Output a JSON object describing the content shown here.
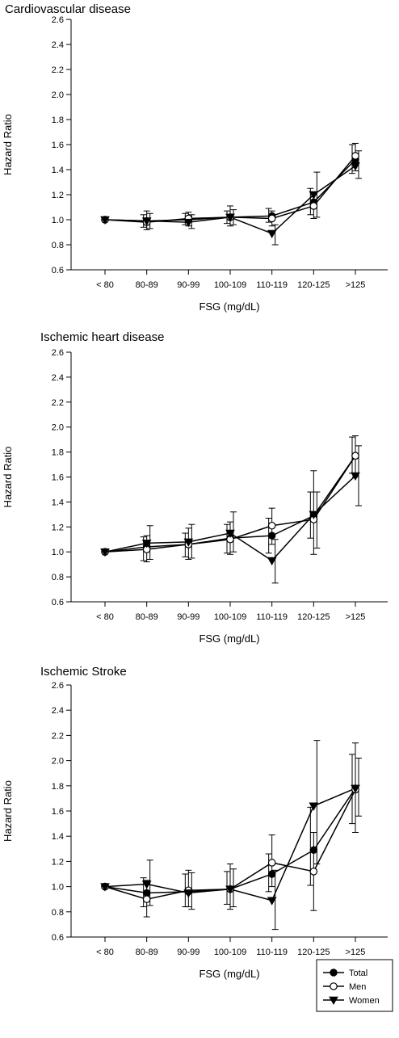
{
  "chart_data": [
    {
      "type": "line",
      "title": "Cardiovascular disease",
      "xlabel": "FSG (mg/dL)",
      "ylabel": "Hazard Ratio",
      "categories": [
        "< 80",
        "80-89",
        "90-99",
        "100-109",
        "110-119",
        "120-125",
        ">125"
      ],
      "ylim": [
        0.6,
        2.6
      ],
      "yticks": [
        "0.6",
        "0.8",
        "1.0",
        "1.2",
        "1.4",
        "1.6",
        "1.8",
        "2.0",
        "2.2",
        "2.4",
        "2.6"
      ],
      "grid": false,
      "series": [
        {
          "name": "Total",
          "marker": "filled-circle",
          "values": [
            1.0,
            0.99,
            1.0,
            1.02,
            1.03,
            1.14,
            1.48
          ],
          "ci_low": [
            1.0,
            0.94,
            0.96,
            0.97,
            0.98,
            1.04,
            1.37
          ],
          "ci_high": [
            1.0,
            1.04,
            1.05,
            1.07,
            1.09,
            1.25,
            1.6
          ]
        },
        {
          "name": "Men",
          "marker": "open-circle",
          "values": [
            1.0,
            0.98,
            1.01,
            1.02,
            1.01,
            1.11,
            1.51
          ],
          "ci_low": [
            1.0,
            0.92,
            0.95,
            0.95,
            0.95,
            1.01,
            1.39
          ],
          "ci_high": [
            1.0,
            1.07,
            1.06,
            1.11,
            1.07,
            1.22,
            1.61
          ]
        },
        {
          "name": "Women",
          "marker": "filled-triangle-down",
          "values": [
            1.0,
            0.99,
            0.98,
            1.02,
            0.89,
            1.2,
            1.43
          ],
          "ci_low": [
            1.0,
            0.93,
            0.93,
            0.96,
            0.8,
            1.02,
            1.33
          ],
          "ci_high": [
            1.0,
            1.05,
            1.04,
            1.08,
            0.96,
            1.38,
            1.55
          ]
        }
      ]
    },
    {
      "type": "line",
      "title": "Ischemic heart disease",
      "xlabel": "FSG (mg/dL)",
      "ylabel": "Hazard Ratio",
      "categories": [
        "< 80",
        "80-89",
        "90-99",
        "100-109",
        "110-119",
        "120-125",
        ">125"
      ],
      "ylim": [
        0.6,
        2.6
      ],
      "yticks": [
        "0.6",
        "0.8",
        "1.0",
        "1.2",
        "1.4",
        "1.6",
        "1.8",
        "2.0",
        "2.2",
        "2.4",
        "2.6"
      ],
      "grid": false,
      "series": [
        {
          "name": "Total",
          "marker": "filled-circle",
          "values": [
            1.0,
            1.04,
            1.06,
            1.11,
            1.13,
            1.29,
            1.77
          ],
          "ci_low": [
            1.0,
            0.93,
            0.96,
            0.99,
            0.99,
            1.11,
            1.63
          ],
          "ci_high": [
            1.0,
            1.12,
            1.15,
            1.22,
            1.27,
            1.48,
            1.92
          ]
        },
        {
          "name": "Men",
          "marker": "open-circle",
          "values": [
            1.0,
            1.02,
            1.06,
            1.1,
            1.21,
            1.26,
            1.77
          ],
          "ci_low": [
            1.0,
            0.92,
            0.94,
            0.98,
            1.06,
            0.98,
            1.6
          ],
          "ci_high": [
            1.0,
            1.13,
            1.19,
            1.24,
            1.35,
            1.65,
            1.93
          ]
        },
        {
          "name": "Women",
          "marker": "filled-triangle-down",
          "values": [
            1.0,
            1.07,
            1.08,
            1.15,
            0.93,
            1.3,
            1.61
          ],
          "ci_low": [
            1.0,
            0.94,
            0.95,
            1.0,
            0.75,
            1.03,
            1.37
          ],
          "ci_high": [
            1.0,
            1.21,
            1.22,
            1.32,
            1.1,
            1.48,
            1.85
          ]
        }
      ]
    },
    {
      "type": "line",
      "title": "Ischemic Stroke",
      "xlabel": "FSG (mg/dL)",
      "ylabel": "Hazard Ratio",
      "categories": [
        "< 80",
        "80-89",
        "90-99",
        "100-109",
        "110-119",
        "120-125",
        ">125"
      ],
      "ylim": [
        0.6,
        2.6
      ],
      "yticks": [
        "0.6",
        "0.8",
        "1.0",
        "1.2",
        "1.4",
        "1.6",
        "1.8",
        "2.0",
        "2.2",
        "2.4",
        "2.6"
      ],
      "grid": false,
      "series": [
        {
          "name": "Total",
          "marker": "filled-circle",
          "values": [
            1.0,
            0.95,
            0.96,
            0.98,
            1.1,
            1.29,
            1.78
          ],
          "ci_low": [
            1.0,
            0.84,
            0.84,
            0.86,
            0.96,
            1.01,
            1.5
          ],
          "ci_high": [
            1.0,
            1.07,
            1.1,
            1.12,
            1.26,
            1.63,
            2.05
          ]
        },
        {
          "name": "Men",
          "marker": "open-circle",
          "values": [
            1.0,
            0.9,
            0.97,
            0.98,
            1.19,
            1.12,
            1.77
          ],
          "ci_low": [
            1.0,
            0.76,
            0.84,
            0.82,
            1.0,
            0.81,
            1.43
          ],
          "ci_high": [
            1.0,
            1.05,
            1.13,
            1.18,
            1.41,
            1.43,
            2.14
          ]
        },
        {
          "name": "Women",
          "marker": "filled-triangle-down",
          "values": [
            1.0,
            1.02,
            0.95,
            0.98,
            0.89,
            1.64,
            1.78
          ],
          "ci_low": [
            1.0,
            0.85,
            0.82,
            0.84,
            0.66,
            1.18,
            1.56
          ],
          "ci_high": [
            1.0,
            1.21,
            1.11,
            1.14,
            1.13,
            2.16,
            2.02
          ]
        }
      ]
    }
  ],
  "legend": {
    "position": "bottom-right",
    "entries": [
      {
        "label": "Total",
        "marker": "filled-circle"
      },
      {
        "label": "Men",
        "marker": "open-circle"
      },
      {
        "label": "Women",
        "marker": "filled-triangle-down"
      }
    ]
  }
}
